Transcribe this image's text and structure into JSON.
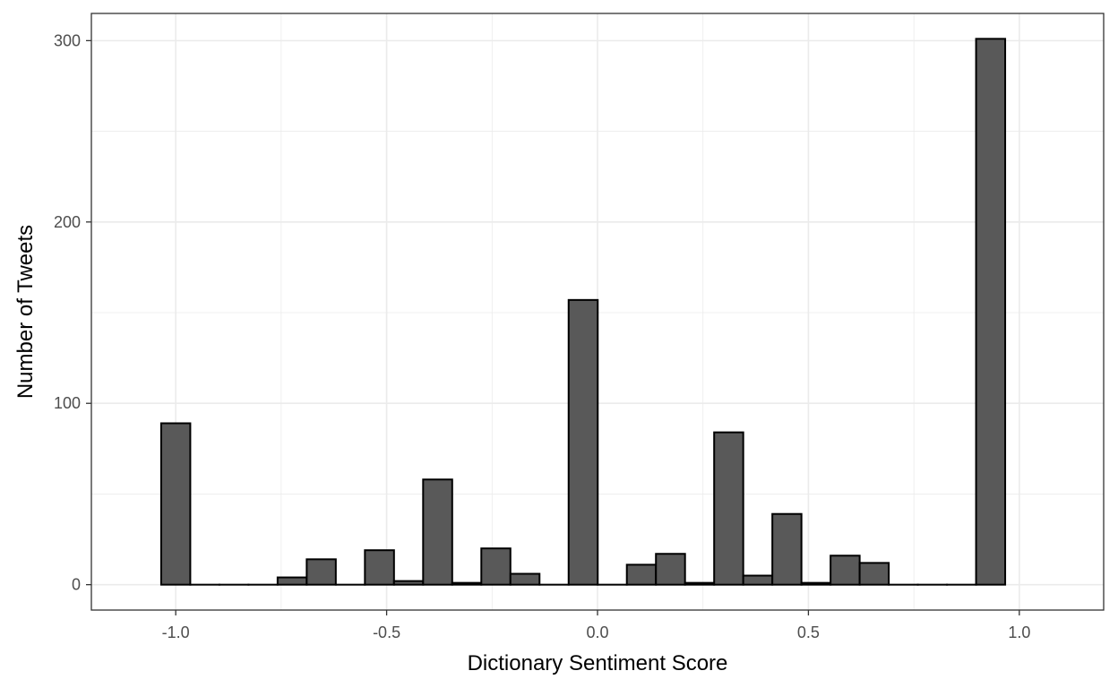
{
  "chart_data": {
    "type": "bar",
    "histogram": true,
    "xlabel": "Dictionary Sentiment Score",
    "ylabel": "Number of Tweets",
    "xlim": [
      -1.2,
      1.2
    ],
    "ylim": [
      -14,
      315
    ],
    "xticks": [
      -1.0,
      -0.5,
      0.0,
      0.5,
      1.0
    ],
    "xtick_labels": [
      "-1.0",
      "-0.5",
      "0.0",
      "0.5",
      "1.0"
    ],
    "yticks": [
      0,
      100,
      200,
      300
    ],
    "ytick_labels": [
      "0",
      "100",
      "200",
      "300"
    ],
    "y_minor_ticks": [
      50,
      150,
      250
    ],
    "x_minor_ticks": [
      -0.75,
      -0.25,
      0.25,
      0.75
    ],
    "bin_width": 0.069,
    "bins": [
      {
        "x": -1.0,
        "count": 89
      },
      {
        "x": -0.931,
        "count": 0
      },
      {
        "x": -0.862,
        "count": 0
      },
      {
        "x": -0.793,
        "count": 0
      },
      {
        "x": -0.724,
        "count": 4
      },
      {
        "x": -0.655,
        "count": 14
      },
      {
        "x": -0.586,
        "count": 0
      },
      {
        "x": -0.517,
        "count": 19
      },
      {
        "x": -0.448,
        "count": 2
      },
      {
        "x": -0.379,
        "count": 58
      },
      {
        "x": -0.31,
        "count": 1
      },
      {
        "x": -0.241,
        "count": 20
      },
      {
        "x": -0.172,
        "count": 6
      },
      {
        "x": -0.103,
        "count": 0
      },
      {
        "x": -0.034,
        "count": 157
      },
      {
        "x": 0.035,
        "count": 0
      },
      {
        "x": 0.104,
        "count": 11
      },
      {
        "x": 0.173,
        "count": 17
      },
      {
        "x": 0.242,
        "count": 1
      },
      {
        "x": 0.311,
        "count": 84
      },
      {
        "x": 0.38,
        "count": 5
      },
      {
        "x": 0.449,
        "count": 39
      },
      {
        "x": 0.518,
        "count": 1
      },
      {
        "x": 0.587,
        "count": 16
      },
      {
        "x": 0.656,
        "count": 12
      },
      {
        "x": 0.725,
        "count": 0
      },
      {
        "x": 0.794,
        "count": 0
      },
      {
        "x": 0.863,
        "count": 0
      },
      {
        "x": 0.932,
        "count": 301
      }
    ],
    "colors": {
      "bar_fill": "#595959",
      "bar_stroke": "#000000",
      "grid": "#ebebeb",
      "panel_border": "#333333"
    },
    "grid": true,
    "theme": "bw"
  }
}
